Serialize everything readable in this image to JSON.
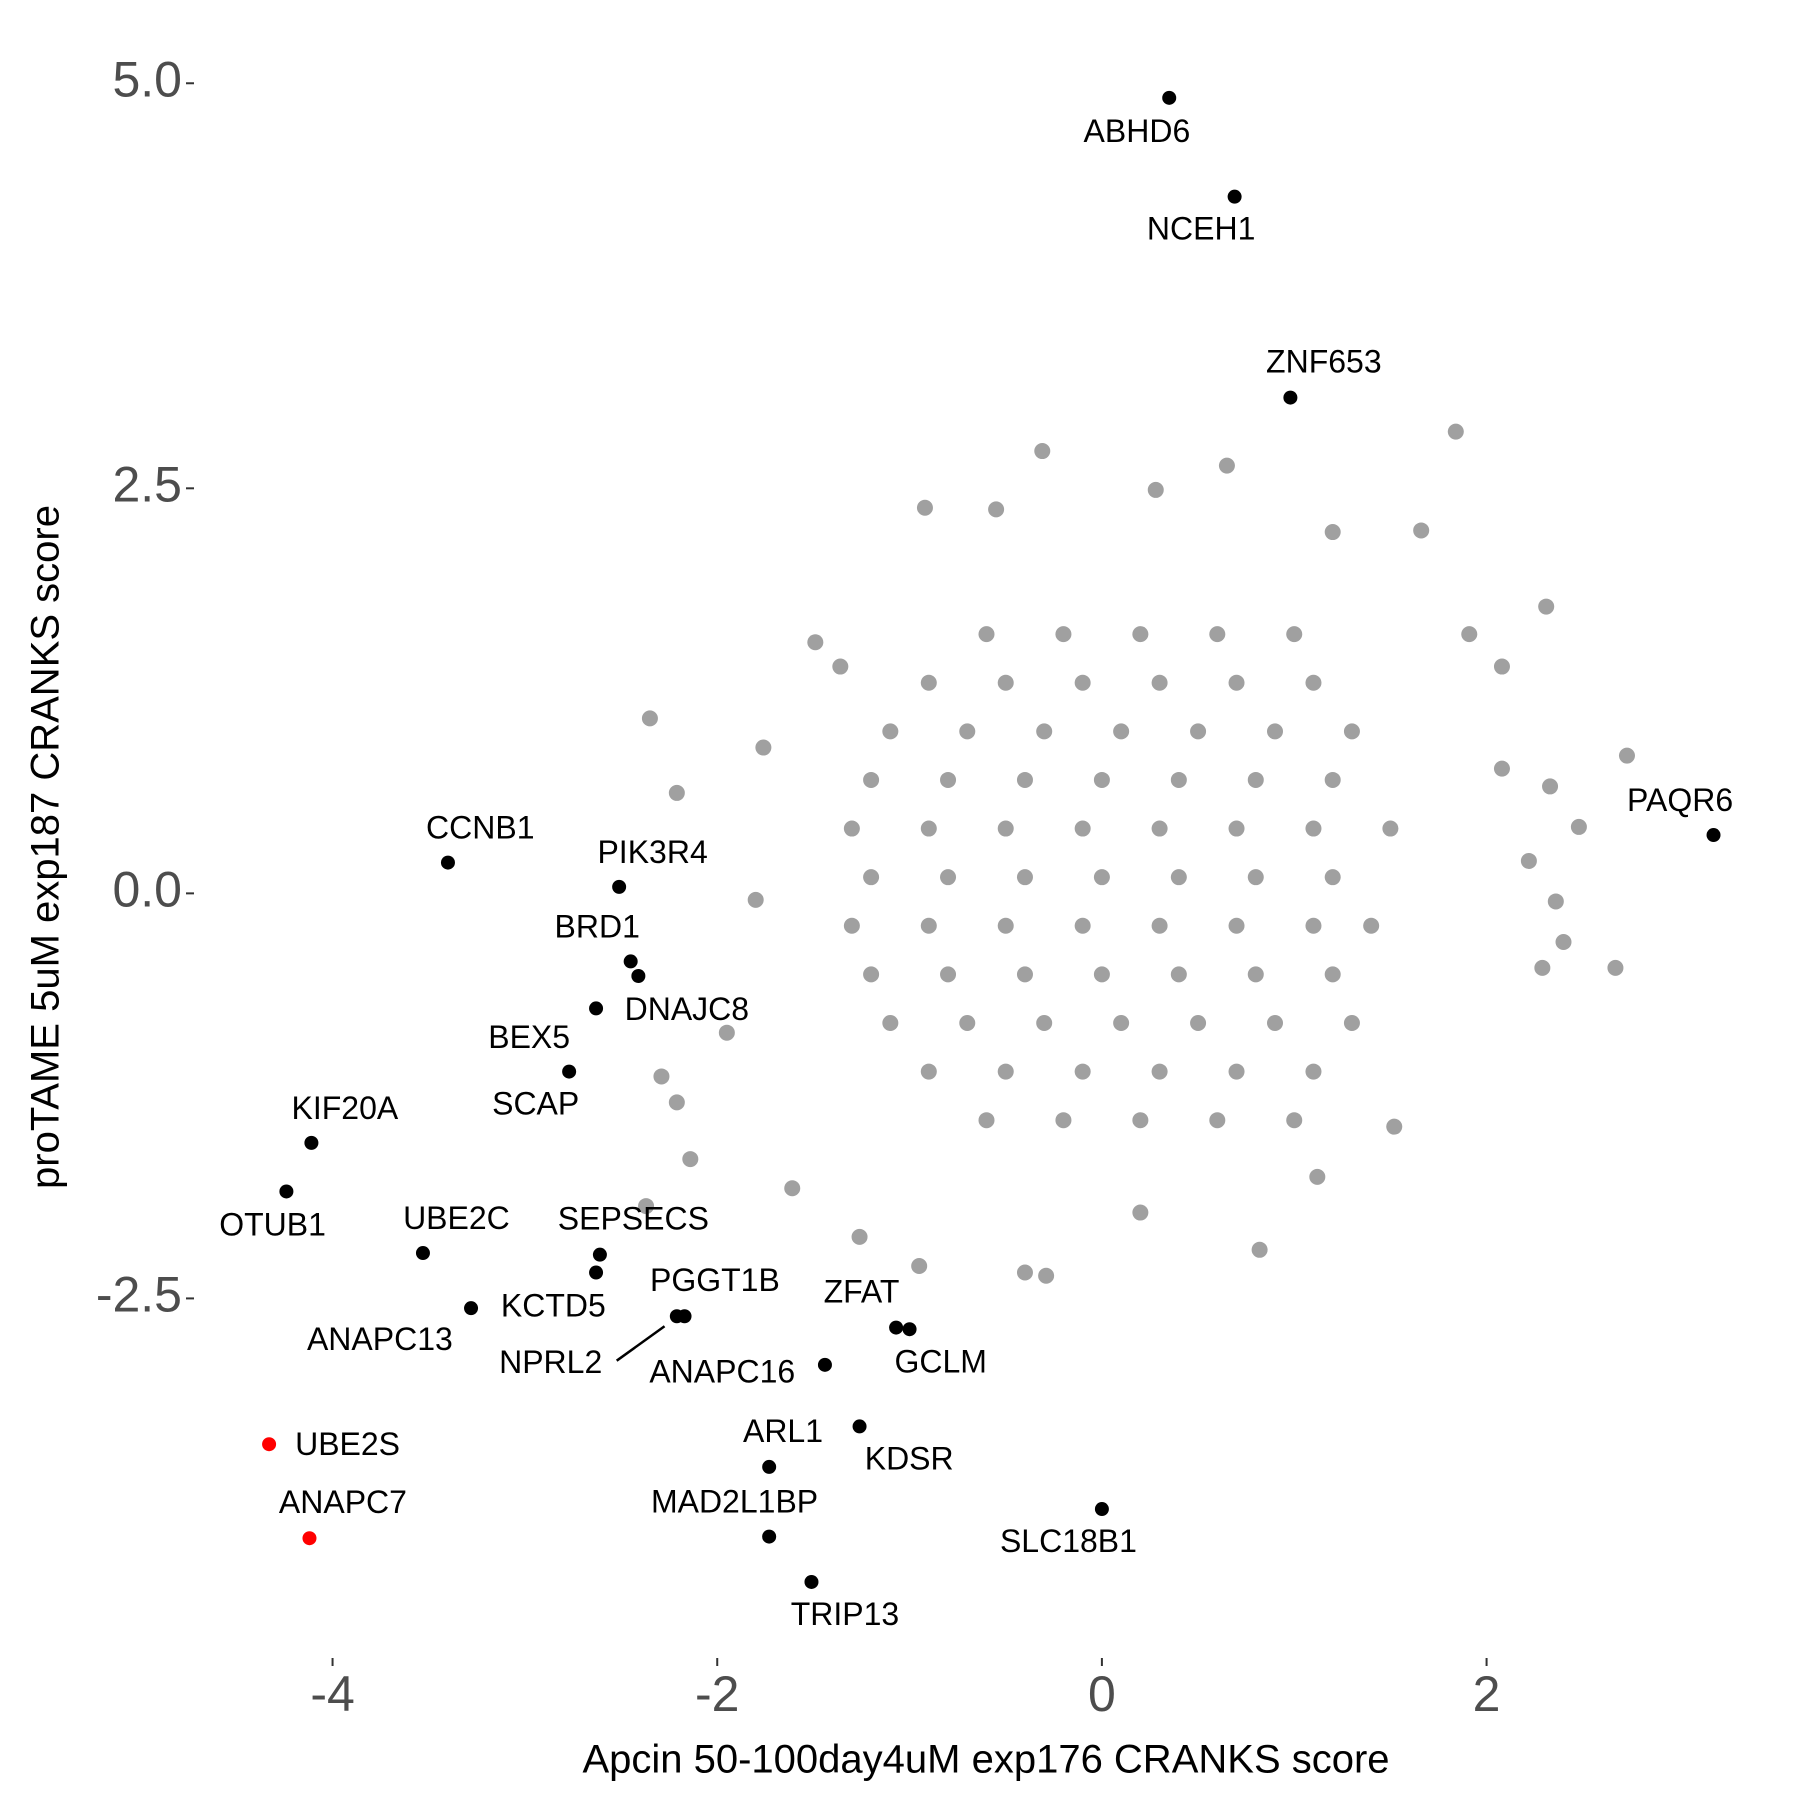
{
  "chart_data": {
    "type": "scatter",
    "x_label": "Apcin 50-100day4uM exp176 CRANKS score",
    "y_label": "proTAME 5uM exp187 CRANKS score",
    "xlim": [
      -4.71,
      3.51
    ],
    "ylim": [
      -4.67,
      5.23
    ],
    "xticks": [
      -4,
      -2,
      0,
      2
    ],
    "yticks": [
      -2.5,
      {
        "value": 0,
        "label": "0.0"
      },
      2.5,
      {
        "value": 5,
        "label": "5.0"
      }
    ],
    "grid": false,
    "series": [
      {
        "color": "#a0a0a0",
        "x": [
          -0.6,
          -0.2,
          0.2,
          0.6,
          1.0,
          -0.9,
          -0.5,
          -0.1,
          0.3,
          0.7,
          1.1,
          -1.1,
          -0.7,
          -0.3,
          0.1,
          0.5,
          0.9,
          1.3,
          -1.2,
          -0.8,
          -0.4,
          0.0,
          0.4,
          0.8,
          1.2,
          -1.3,
          -0.9,
          -0.5,
          -0.1,
          0.3,
          0.7,
          1.1,
          1.5,
          -1.2,
          -0.8,
          -0.4,
          0.0,
          0.4,
          0.8,
          1.2,
          -1.3,
          -0.9,
          -0.5,
          -0.1,
          0.3,
          0.7,
          1.1,
          1.4,
          -1.2,
          -0.8,
          -0.4,
          0.0,
          0.4,
          0.8,
          1.2,
          -1.1,
          -0.7,
          -0.3,
          0.1,
          0.5,
          0.9,
          1.3,
          -0.9,
          -0.5,
          -0.1,
          0.3,
          0.7,
          1.1,
          -0.6,
          -0.2,
          0.2,
          0.6,
          1.0,
          -2.35,
          -2.21,
          -2.29,
          -2.14,
          -2.37,
          -2.21,
          -0.31,
          -0.92,
          -0.55,
          0.65,
          1.84,
          1.2,
          1.66,
          0.28,
          2.31,
          2.08,
          2.73,
          2.48,
          2.33,
          2.22,
          2.36,
          2.4,
          2.67,
          2.29,
          1.52,
          1.12,
          0.82,
          0.2,
          -0.29,
          -0.4,
          -0.95,
          -1.26,
          -1.49,
          -1.36,
          -1.76,
          -1.8,
          -1.95,
          -1.61,
          1.91,
          2.08
        ],
        "y": [
          1.6,
          1.6,
          1.6,
          1.6,
          1.6,
          1.3,
          1.3,
          1.3,
          1.3,
          1.3,
          1.3,
          1.0,
          1.0,
          1.0,
          1.0,
          1.0,
          1.0,
          1.0,
          0.7,
          0.7,
          0.7,
          0.7,
          0.7,
          0.7,
          0.7,
          0.4,
          0.4,
          0.4,
          0.4,
          0.4,
          0.4,
          0.4,
          0.4,
          0.1,
          0.1,
          0.1,
          0.1,
          0.1,
          0.1,
          0.1,
          -0.2,
          -0.2,
          -0.2,
          -0.2,
          -0.2,
          -0.2,
          -0.2,
          -0.2,
          -0.5,
          -0.5,
          -0.5,
          -0.5,
          -0.5,
          -0.5,
          -0.5,
          -0.8,
          -0.8,
          -0.8,
          -0.8,
          -0.8,
          -0.8,
          -0.8,
          -1.1,
          -1.1,
          -1.1,
          -1.1,
          -1.1,
          -1.1,
          -1.4,
          -1.4,
          -1.4,
          -1.4,
          -1.4,
          1.08,
          0.62,
          -1.13,
          -1.64,
          -1.93,
          -1.29,
          2.73,
          2.38,
          2.37,
          2.64,
          2.85,
          2.23,
          2.24,
          2.49,
          1.77,
          1.4,
          0.85,
          0.41,
          0.66,
          0.2,
          -0.05,
          -0.3,
          -0.46,
          -0.46,
          -1.44,
          -1.75,
          -2.2,
          -1.97,
          -2.36,
          -2.34,
          -2.3,
          -2.12,
          1.55,
          1.4,
          0.9,
          -0.04,
          -0.86,
          -1.82,
          1.6,
          0.77
        ]
      },
      {
        "color": "#000000",
        "labels": [
          "ABHD6",
          "NCEH1",
          "ZNF653",
          "PAQR6",
          "CCNB1",
          "PIK3R4",
          "BRD1",
          "DNAJC8",
          "BEX5",
          "SCAP",
          "KIF20A",
          "OTUB1",
          "UBE2C",
          "SEPSECS",
          "KCTD5",
          "ANAPC13",
          "PGGT1B",
          "NPRL2",
          "ZFAT",
          "GCLM",
          "ANAPC16",
          "KDSR",
          "ARL1",
          "MAD2L1BP",
          "SLC18B1",
          "TRIP13"
        ],
        "x": [
          0.35,
          0.69,
          0.98,
          3.18,
          -3.4,
          -2.51,
          -2.45,
          -2.41,
          -2.63,
          -2.77,
          -4.11,
          -4.24,
          -3.53,
          -2.61,
          -2.63,
          -3.28,
          -2.21,
          -2.17,
          -1.07,
          -1.0,
          -1.44,
          -1.26,
          -1.73,
          -1.73,
          0.0,
          -1.51
        ],
        "y": [
          4.91,
          4.3,
          3.06,
          0.36,
          0.19,
          0.04,
          -0.42,
          -0.51,
          -0.71,
          -1.1,
          -1.54,
          -1.84,
          -2.22,
          -2.23,
          -2.34,
          -2.56,
          -2.61,
          -2.61,
          -2.68,
          -2.69,
          -2.91,
          -3.29,
          -3.54,
          -3.97,
          -3.8,
          -4.25
        ]
      },
      {
        "color": "#ff0000",
        "labels": [
          "UBE2S",
          "ANAPC7"
        ],
        "x": [
          -4.33,
          -4.12
        ],
        "y": [
          -3.4,
          -3.98
        ]
      }
    ]
  }
}
